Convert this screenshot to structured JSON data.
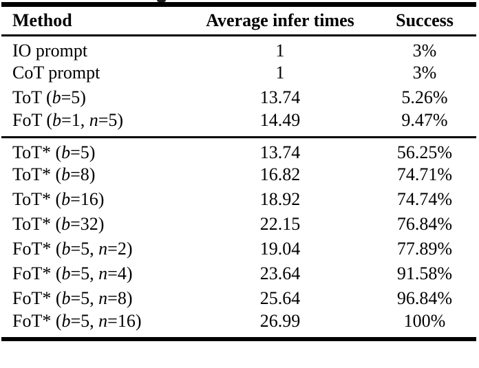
{
  "colors": {
    "text": "#000000",
    "background": "#ffffff",
    "rule": "#000000"
  },
  "table": {
    "header": {
      "method": "Method",
      "avg_infer_times": "Average infer times",
      "success": "Success"
    },
    "sections": [
      {
        "rows": [
          {
            "method": [
              {
                "text": "IO prompt",
                "italic": false
              }
            ],
            "avg_infer_times": "1",
            "success": "3%"
          },
          {
            "method": [
              {
                "text": "CoT prompt",
                "italic": false
              }
            ],
            "avg_infer_times": "1",
            "success": "3%"
          },
          {
            "method": [
              {
                "text": "ToT (",
                "italic": false
              },
              {
                "text": "b",
                "italic": true
              },
              {
                "text": "=5)",
                "italic": false
              }
            ],
            "avg_infer_times": "13.74",
            "success": "5.26%"
          },
          {
            "method": [
              {
                "text": "FoT (",
                "italic": false
              },
              {
                "text": "b",
                "italic": true
              },
              {
                "text": "=1, ",
                "italic": false
              },
              {
                "text": "n",
                "italic": true
              },
              {
                "text": "=5)",
                "italic": false
              }
            ],
            "avg_infer_times": "14.49",
            "success": "9.47%"
          }
        ]
      },
      {
        "rows": [
          {
            "method": [
              {
                "text": "ToT* (",
                "italic": false
              },
              {
                "text": "b",
                "italic": true
              },
              {
                "text": "=5)",
                "italic": false
              }
            ],
            "avg_infer_times": "13.74",
            "success": "56.25%"
          },
          {
            "method": [
              {
                "text": "ToT* (",
                "italic": false
              },
              {
                "text": "b",
                "italic": true
              },
              {
                "text": "=8)",
                "italic": false
              }
            ],
            "avg_infer_times": "16.82",
            "success": "74.71%"
          },
          {
            "method": [
              {
                "text": "ToT* (",
                "italic": false
              },
              {
                "text": "b",
                "italic": true
              },
              {
                "text": "=16)",
                "italic": false
              }
            ],
            "avg_infer_times": "18.92",
            "success": "74.74%"
          },
          {
            "method": [
              {
                "text": "ToT* (",
                "italic": false
              },
              {
                "text": "b",
                "italic": true
              },
              {
                "text": "=32)",
                "italic": false
              }
            ],
            "avg_infer_times": "22.15",
            "success": "76.84%"
          },
          {
            "method": [
              {
                "text": "FoT* (",
                "italic": false
              },
              {
                "text": "b",
                "italic": true
              },
              {
                "text": "=5, ",
                "italic": false
              },
              {
                "text": "n",
                "italic": true
              },
              {
                "text": "=2)",
                "italic": false
              }
            ],
            "avg_infer_times": "19.04",
            "success": "77.89%"
          },
          {
            "method": [
              {
                "text": "FoT* (",
                "italic": false
              },
              {
                "text": "b",
                "italic": true
              },
              {
                "text": "=5, ",
                "italic": false
              },
              {
                "text": "n",
                "italic": true
              },
              {
                "text": "=4)",
                "italic": false
              }
            ],
            "avg_infer_times": "23.64",
            "success": "91.58%"
          },
          {
            "method": [
              {
                "text": "FoT* (",
                "italic": false
              },
              {
                "text": "b",
                "italic": true
              },
              {
                "text": "=5, ",
                "italic": false
              },
              {
                "text": "n",
                "italic": true
              },
              {
                "text": "=8)",
                "italic": false
              }
            ],
            "avg_infer_times": "25.64",
            "success": "96.84%"
          },
          {
            "method": [
              {
                "text": "FoT* (",
                "italic": false
              },
              {
                "text": "b",
                "italic": true
              },
              {
                "text": "=5, ",
                "italic": false
              },
              {
                "text": "n",
                "italic": true
              },
              {
                "text": "=16)",
                "italic": false
              }
            ],
            "avg_infer_times": "26.99",
            "success": "100%"
          }
        ]
      }
    ]
  }
}
